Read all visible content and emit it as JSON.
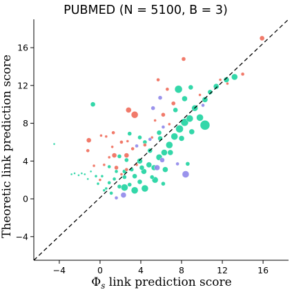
{
  "chart_data": {
    "type": "scatter",
    "title": "PUBMED (N = 5100, B = 3)",
    "xlabel_symbol": "Φ",
    "xlabel_subscript": "s",
    "xlabel_rest": " link prediction score",
    "ylabel": "Theoretic link prediction score",
    "xlim": [
      -6.5,
      18.5
    ],
    "ylim": [
      -6.5,
      19.0
    ],
    "xticks": [
      -4,
      0,
      4,
      8,
      12,
      16
    ],
    "yticks": [
      -4,
      0,
      4,
      8,
      12,
      16
    ],
    "grid": false,
    "legend": "none",
    "reference_line": {
      "style": "dashed",
      "from": [
        -6.5,
        -6.5
      ],
      "to": [
        18.5,
        19.0
      ]
    },
    "colors": {
      "teal": "#1dd3a0",
      "red": "#ef6c5a",
      "purple": "#8f87ea"
    },
    "series": [
      {
        "color": "teal",
        "points": [
          [
            -4.5,
            5.8,
            1.5
          ],
          [
            -2.8,
            2.6,
            1.5
          ],
          [
            -2.5,
            2.7,
            1.5
          ],
          [
            -2.1,
            2.5,
            1.5
          ],
          [
            -1.8,
            2.7,
            1.5
          ],
          [
            -1.5,
            2.6,
            1.5
          ],
          [
            -1.2,
            2.1,
            1.5
          ],
          [
            -0.9,
            2.9,
            1.5
          ],
          [
            -0.7,
            10.0,
            3.5
          ],
          [
            -0.4,
            2.4,
            2
          ],
          [
            0.2,
            2.4,
            2
          ],
          [
            -0.2,
            1.6,
            2
          ],
          [
            0.4,
            0.9,
            2
          ],
          [
            0.9,
            1.7,
            2.5
          ],
          [
            1.4,
            2.1,
            2.5
          ],
          [
            1.9,
            1.3,
            3
          ],
          [
            2.4,
            2.3,
            3
          ],
          [
            2.9,
            1.5,
            3
          ],
          [
            3.4,
            2.4,
            3.5
          ],
          [
            3.9,
            1.8,
            3.5
          ],
          [
            4.3,
            2.9,
            4
          ],
          [
            4.8,
            3.6,
            4
          ],
          [
            5.3,
            3.3,
            4
          ],
          [
            5.8,
            4.4,
            4.5
          ],
          [
            6.3,
            4.9,
            4.5
          ],
          [
            6.8,
            5.7,
            5
          ],
          [
            7.3,
            6.6,
            5
          ],
          [
            7.8,
            7.4,
            5.5
          ],
          [
            8.3,
            8.1,
            5.5
          ],
          [
            8.8,
            8.5,
            5
          ],
          [
            9.3,
            9.6,
            4.5
          ],
          [
            9.8,
            8.6,
            5
          ],
          [
            10.3,
            7.8,
            7
          ],
          [
            10.3,
            10.5,
            4
          ],
          [
            10.8,
            11.3,
            3.5
          ],
          [
            11.4,
            11.9,
            4
          ],
          [
            12.4,
            12.6,
            4
          ],
          [
            13.2,
            12.9,
            4.5
          ],
          [
            7.7,
            11.6,
            5.5
          ],
          [
            8.3,
            10.6,
            4
          ],
          [
            8.9,
            11.8,
            3.5
          ],
          [
            5.8,
            7.0,
            3.5
          ],
          [
            4.4,
            6.0,
            3
          ],
          [
            3.9,
            6.5,
            3
          ],
          [
            2.9,
            6.9,
            3
          ],
          [
            8.6,
            3.7,
            3
          ],
          [
            2.4,
            1.2,
            5
          ],
          [
            3.4,
            0.9,
            5
          ],
          [
            4.4,
            1.1,
            5
          ],
          [
            5.4,
            2.0,
            4.5
          ],
          [
            6.4,
            3.1,
            4
          ],
          [
            6.9,
            4.9,
            4
          ],
          [
            3.9,
            4.0,
            4
          ],
          [
            1.9,
            4.5,
            3
          ],
          [
            7.4,
            9.4,
            3.5
          ],
          [
            0.9,
            3.4,
            2.5
          ],
          [
            2.4,
            2.9,
            3
          ],
          [
            4.9,
            5.1,
            3.5
          ],
          [
            5.9,
            6.4,
            3.5
          ],
          [
            6.2,
            1.6,
            3
          ],
          [
            5.1,
            2.3,
            3
          ],
          [
            3.1,
            3.1,
            3
          ],
          [
            0.6,
            1.1,
            2
          ],
          [
            1.6,
            2.9,
            2.5
          ],
          [
            8.0,
            6.4,
            4
          ],
          [
            9.0,
            7.1,
            4
          ],
          [
            4.1,
            3.3,
            3.5
          ],
          [
            2.6,
            4.1,
            3
          ],
          [
            1.1,
            0.6,
            2.5
          ]
        ]
      },
      {
        "color": "red",
        "points": [
          [
            15.9,
            17.0,
            3.5
          ],
          [
            8.2,
            14.8,
            3
          ],
          [
            2.8,
            9.4,
            4
          ],
          [
            3.4,
            8.9,
            5
          ],
          [
            6.2,
            8.9,
            3
          ],
          [
            7.2,
            10.1,
            3
          ],
          [
            5.7,
            12.6,
            2.5
          ],
          [
            6.6,
            11.6,
            2.5
          ],
          [
            -1.1,
            6.2,
            3.5
          ],
          [
            -1.2,
            5.1,
            2.5
          ],
          [
            0.6,
            6.6,
            2
          ],
          [
            1.2,
            5.5,
            2
          ],
          [
            2.1,
            6.0,
            2.5
          ],
          [
            2.7,
            6.1,
            2
          ],
          [
            0.1,
            6.7,
            2
          ],
          [
            1.4,
            4.6,
            3.5
          ],
          [
            0.9,
            4.4,
            2
          ],
          [
            2.6,
            4.6,
            3.5
          ],
          [
            0.4,
            3.6,
            2
          ],
          [
            -0.6,
            3.5,
            2
          ],
          [
            1.6,
            3.3,
            3
          ],
          [
            2.1,
            2.6,
            2
          ],
          [
            3.6,
            3.6,
            2
          ],
          [
            1.3,
            7.0,
            2.5
          ],
          [
            2.6,
            3.1,
            2.5
          ],
          [
            4.4,
            5.7,
            2.5
          ],
          [
            5.1,
            6.5,
            2
          ],
          [
            0.0,
            2.0,
            2
          ],
          [
            3.2,
            5.3,
            2.5
          ],
          [
            9.8,
            11.0,
            2
          ],
          [
            11.8,
            12.6,
            2
          ],
          [
            12.5,
            12.2,
            2
          ],
          [
            14.0,
            13.2,
            2.5
          ],
          [
            5.4,
            8.3,
            2
          ],
          [
            6.8,
            7.9,
            2
          ]
        ]
      },
      {
        "color": "purple",
        "points": [
          [
            8.4,
            2.6,
            5
          ],
          [
            5.9,
            10.7,
            3
          ],
          [
            5.2,
            9.6,
            3
          ],
          [
            6.2,
            7.6,
            2.5
          ],
          [
            5.6,
            3.3,
            4
          ],
          [
            6.1,
            4.1,
            3.5
          ],
          [
            4.9,
            6.3,
            2.5
          ],
          [
            3.6,
            5.6,
            2.5
          ],
          [
            10.1,
            9.9,
            2.5
          ],
          [
            2.3,
            0.4,
            4
          ],
          [
            7.6,
            3.7,
            2.5
          ],
          [
            1.6,
            0.1,
            2.5
          ]
        ]
      }
    ]
  }
}
